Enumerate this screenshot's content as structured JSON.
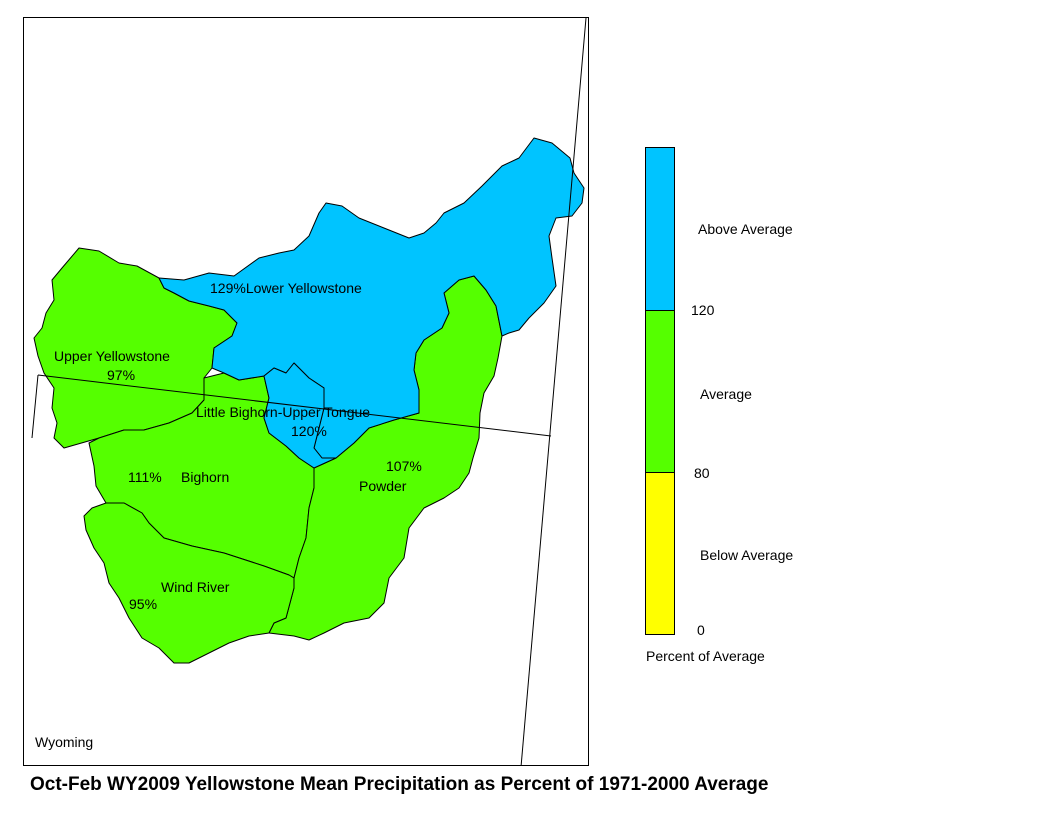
{
  "title": "Oct-Feb WY2009 Yellowstone Mean Precipitation as Percent of 1971-2000 Average",
  "state_label": "Wyoming",
  "colors": {
    "above": "#00c4ff",
    "average": "#55ff00",
    "below": "#ffff00",
    "border": "#000000"
  },
  "basins": [
    {
      "name": "Lower Yellowstone",
      "percent": "129%",
      "category": "above"
    },
    {
      "name": "Little Bighorn-Upper Tongue",
      "percent": "120%",
      "category": "above"
    },
    {
      "name": "Upper Yellowstone",
      "percent": "97%",
      "category": "average"
    },
    {
      "name": "Bighorn",
      "percent": "111%",
      "category": "average"
    },
    {
      "name": "Powder",
      "percent": "107%",
      "category": "average"
    },
    {
      "name": "Wind River",
      "percent": "95%",
      "category": "average"
    }
  ],
  "legend": {
    "caption": "Percent of Average",
    "classes": [
      {
        "label": "Above Average",
        "color": "#00c4ff"
      },
      {
        "label": "Average",
        "color": "#55ff00"
      },
      {
        "label": "Below Average",
        "color": "#ffff00"
      }
    ],
    "breaks": [
      "120",
      "80",
      "0"
    ]
  }
}
